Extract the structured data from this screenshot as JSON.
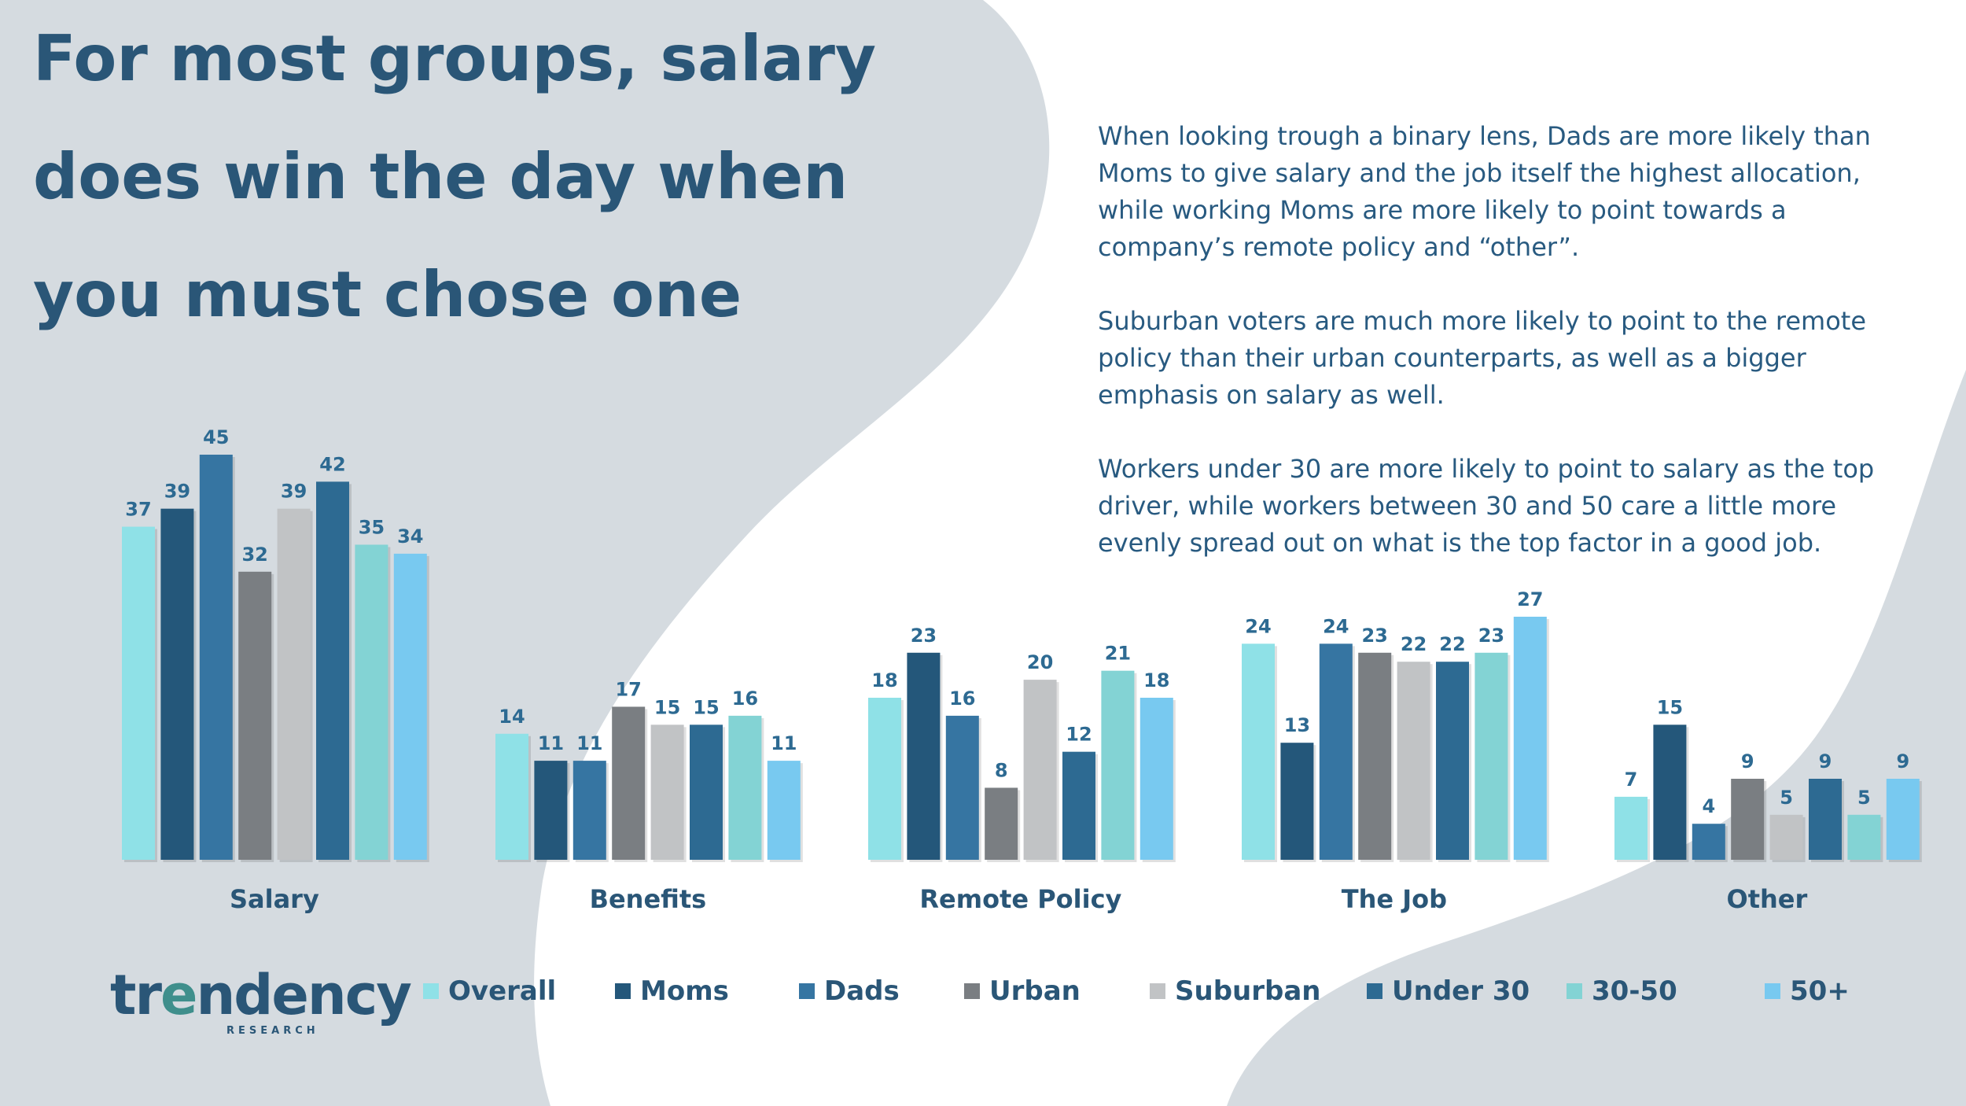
{
  "title": {
    "line1": "For most groups, salary",
    "line2": "does win the day when",
    "line3": "you must chose one"
  },
  "notes": [
    "When looking trough a binary lens, Dads are more likely than Moms to give salary and the job itself the highest allocation, while working Moms are more likely to point towards a company’s remote policy and “other”.",
    "Suburban voters are much more likely to point to the remote policy than their urban counterparts, as well as a bigger emphasis on salary as well.",
    "Workers under 30 are more likely to point to salary as the top driver, while workers between 30 and 50 care a little more evenly spread out on what is the top factor in a good job."
  ],
  "logo": {
    "word_pre": "tr",
    "word_e": "e",
    "word_post": "ndency",
    "sub": "RESEARCH"
  },
  "colors": {
    "background_gray": "#d5dbe0",
    "title": "#2a5677",
    "label": "#2d6a92"
  },
  "chart_data": {
    "type": "bar",
    "categories": [
      "Salary",
      "Benefits",
      "Remote Policy",
      "The Job",
      "Other"
    ],
    "ylim": [
      0,
      50
    ],
    "legend_position": "bottom",
    "grid": false,
    "series": [
      {
        "name": "Overall",
        "color": "#8fe1e7",
        "values": [
          37,
          14,
          18,
          24,
          7
        ]
      },
      {
        "name": "Moms",
        "color": "#24577a",
        "values": [
          39,
          11,
          23,
          13,
          15
        ]
      },
      {
        "name": "Dads",
        "color": "#3675a2",
        "values": [
          45,
          11,
          16,
          24,
          4
        ]
      },
      {
        "name": "Urban",
        "color": "#7a7e82",
        "values": [
          32,
          17,
          8,
          23,
          9
        ]
      },
      {
        "name": "Suburban",
        "color": "#c1c3c5",
        "values": [
          39,
          15,
          20,
          22,
          5
        ]
      },
      {
        "name": "Under 30",
        "color": "#2d6a92",
        "values": [
          42,
          15,
          12,
          22,
          9
        ]
      },
      {
        "name": "30-50",
        "color": "#83d3d4",
        "values": [
          35,
          16,
          21,
          23,
          5
        ]
      },
      {
        "name": "50+",
        "color": "#78c9f0",
        "values": [
          34,
          11,
          18,
          27,
          9
        ]
      }
    ]
  }
}
